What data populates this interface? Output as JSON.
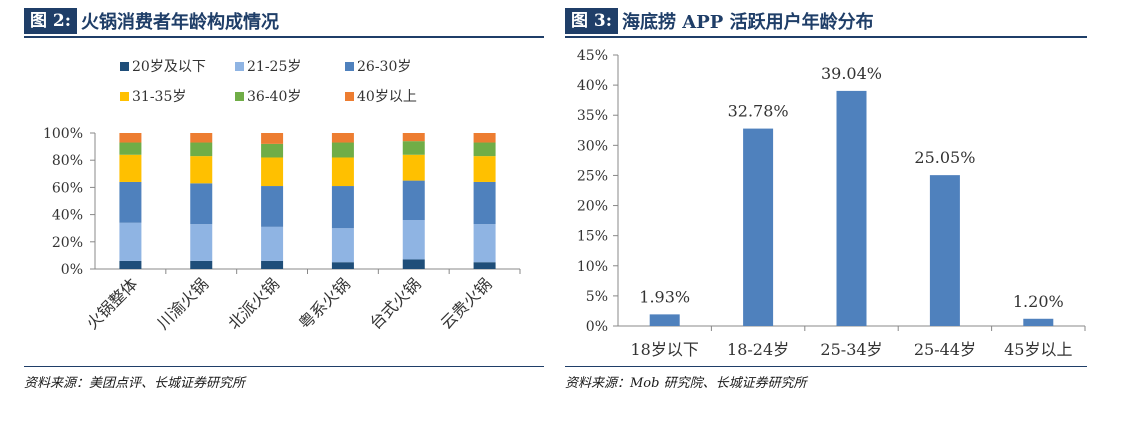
{
  "left": {
    "fig_label": "图 2:",
    "fig_title": "火锅消费者年龄构成情况",
    "source": "资料来源：美团点评、长城证券研究所",
    "chart_data": {
      "type": "bar",
      "stacked": true,
      "categories": [
        "火锅整体",
        "川渝火锅",
        "北派火锅",
        "粤系火锅",
        "台式火锅",
        "云贵火锅"
      ],
      "series": [
        {
          "name": "20岁及以下",
          "color": "#1f4e79",
          "values": [
            6,
            6,
            6,
            5,
            7,
            5
          ]
        },
        {
          "name": "21-25岁",
          "color": "#8fb4e3",
          "values": [
            28,
            27,
            25,
            25,
            29,
            28
          ]
        },
        {
          "name": "26-30岁",
          "color": "#4f81bd",
          "values": [
            30,
            30,
            30,
            31,
            29,
            31
          ]
        },
        {
          "name": "31-35岁",
          "color": "#ffc000",
          "values": [
            20,
            20,
            21,
            21,
            19,
            19
          ]
        },
        {
          "name": "36-40岁",
          "color": "#70ad47",
          "values": [
            9,
            10,
            10,
            11,
            10,
            10
          ]
        },
        {
          "name": "40岁以上",
          "color": "#ed7d31",
          "values": [
            7,
            7,
            8,
            7,
            6,
            7
          ]
        }
      ],
      "ylim": [
        0,
        100
      ],
      "yticks": [
        "0%",
        "20%",
        "40%",
        "60%",
        "80%",
        "100%"
      ],
      "legend_position": "top",
      "grid": false
    }
  },
  "right": {
    "fig_label": "图 3:",
    "fig_title": "海底捞 APP 活跃用户年龄分布",
    "source": "资料来源：Mob 研究院、长城证券研究所",
    "chart_data": {
      "type": "bar",
      "categories": [
        "18岁以下",
        "18-24岁",
        "25-34岁",
        "25-44岁",
        "45岁以上"
      ],
      "values": [
        1.93,
        32.78,
        39.04,
        25.05,
        1.2
      ],
      "data_labels": [
        "1.93%",
        "32.78%",
        "39.04%",
        "25.05%",
        "1.20%"
      ],
      "color": "#4f81bd",
      "ylim": [
        0,
        45
      ],
      "yticks": [
        "0%",
        "5%",
        "10%",
        "15%",
        "20%",
        "25%",
        "30%",
        "35%",
        "40%",
        "45%"
      ],
      "grid": false
    }
  }
}
